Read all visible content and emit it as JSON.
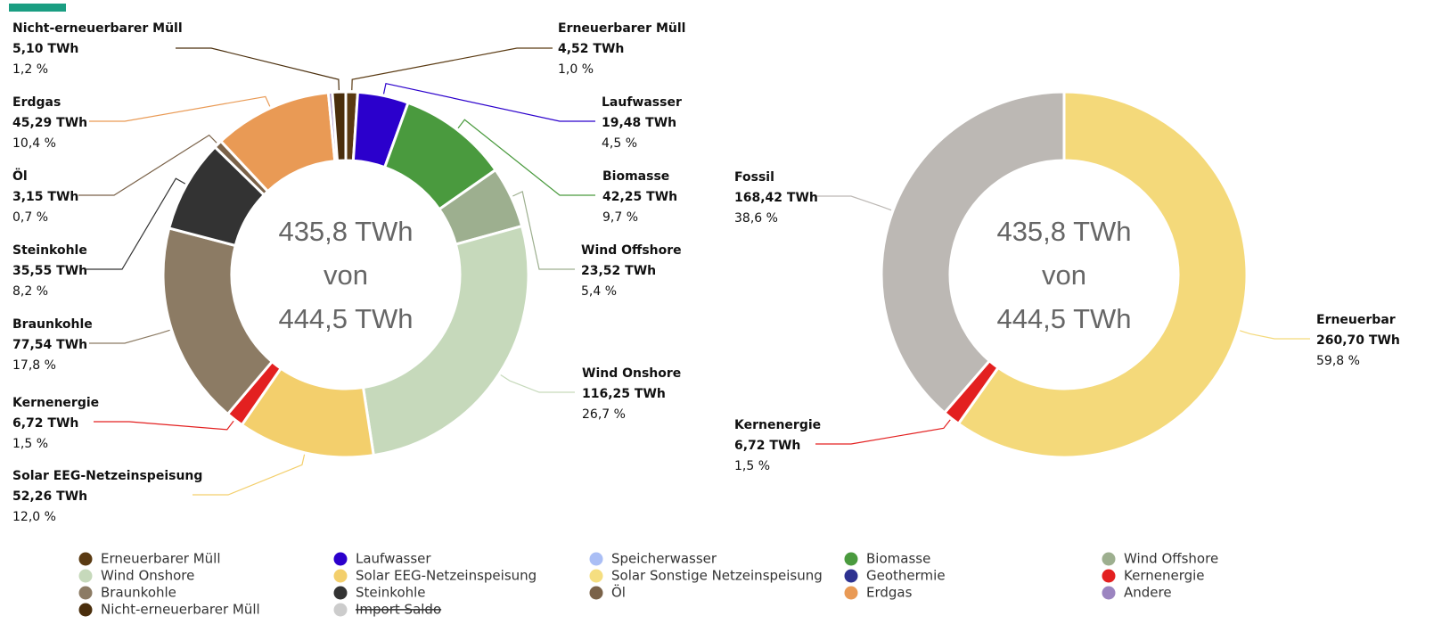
{
  "chart_data": [
    {
      "type": "pie",
      "categories": [
        "Erneuerbarer Müll",
        "Laufwasser",
        "Biomasse",
        "Wind Offshore",
        "Wind Onshore",
        "Solar EEG-Netzeinspeisung",
        "Kernenergie",
        "Braunkohle",
        "Steinkohle",
        "Öl",
        "Erdgas",
        null,
        "Nicht-erneuerbarer Müll"
      ],
      "values": [
        4.52,
        19.48,
        42.25,
        23.52,
        116.25,
        52.26,
        6.72,
        77.54,
        35.55,
        3.15,
        45.29,
        1.5,
        5.1
      ],
      "value_labels": [
        "4,52 TWh",
        "19,48 TWh",
        "42,25 TWh",
        "23,52 TWh",
        "116,25 TWh",
        "52,26 TWh",
        "6,72 TWh",
        "77,54 TWh",
        "35,55 TWh",
        "3,15 TWh",
        "45,29 TWh",
        null,
        "5,10 TWh"
      ],
      "percentages": [
        1.0,
        4.5,
        9.7,
        5.4,
        26.7,
        12.0,
        1.5,
        17.8,
        8.2,
        0.7,
        10.4,
        null,
        1.2
      ],
      "percentage_labels": [
        "1,0 %",
        "4,5 %",
        "9,7 %",
        "5,4 %",
        "26,7 %",
        "12,0 %",
        "1,5 %",
        "17,8 %",
        "8,2 %",
        "0,7 %",
        "10,4 %",
        null,
        "1,2 %"
      ],
      "colors": [
        "#5a3a12",
        "#2b00cc",
        "#4a9a3e",
        "#9daf8f",
        "#c6d9bb",
        "#f3cf6c",
        "#e32020",
        "#8c7b64",
        "#333333",
        "#7a6249",
        "#e99a55",
        "#9b84c0",
        "#4a2e0c"
      ],
      "center_text": [
        "435,8 TWh",
        "von",
        "444,5 TWh"
      ]
    },
    {
      "type": "pie",
      "categories": [
        "Erneuerbar",
        "Kernenergie",
        "Fossil"
      ],
      "values": [
        260.7,
        6.72,
        168.42
      ],
      "value_labels": [
        "260,70 TWh",
        "6,72 TWh",
        "168,42 TWh"
      ],
      "percentages": [
        59.8,
        1.5,
        38.6
      ],
      "percentage_labels": [
        "59,8 %",
        "1,5 %",
        "38,6 %"
      ],
      "colors": [
        "#f4d97a",
        "#e32020",
        "#bcb8b4"
      ],
      "center_text": [
        "435,8 TWh",
        "von",
        "444,5 TWh"
      ]
    }
  ],
  "legend": [
    {
      "name": "Erneuerbarer Müll",
      "color": "#5a3a12"
    },
    {
      "name": "Laufwasser",
      "color": "#2b00cc"
    },
    {
      "name": "Speicherwasser",
      "color": "#aabef5"
    },
    {
      "name": "Biomasse",
      "color": "#4a9a3e"
    },
    {
      "name": "Wind Offshore",
      "color": "#9daf8f"
    },
    {
      "name": "Wind Onshore",
      "color": "#c6d9bb"
    },
    {
      "name": "Solar EEG-Netzeinspeisung",
      "color": "#f3cf6c"
    },
    {
      "name": "Solar Sonstige Netzeinspeisung",
      "color": "#f5de80"
    },
    {
      "name": "Geothermie",
      "color": "#2d3190"
    },
    {
      "name": "Kernenergie",
      "color": "#e32020"
    },
    {
      "name": "Braunkohle",
      "color": "#8c7b64"
    },
    {
      "name": "Steinkohle",
      "color": "#333333"
    },
    {
      "name": "Öl",
      "color": "#7a6249"
    },
    {
      "name": "Erdgas",
      "color": "#e99a55"
    },
    {
      "name": "Andere",
      "color": "#9b84c0"
    },
    {
      "name": "Nicht-erneuerbarer Müll",
      "color": "#4a2e0c"
    },
    {
      "name": "Import Saldo",
      "color": "#cccccc",
      "hidden": true
    }
  ]
}
